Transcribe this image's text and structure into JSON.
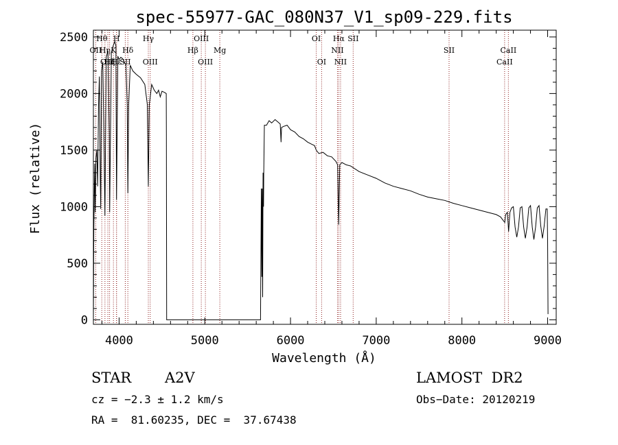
{
  "chart_data": {
    "type": "line",
    "title": "spec-55977-GAC_080N37_V1_sp09-229.fits",
    "xlabel": "Wavelength (Å)",
    "ylabel": "Flux (relative)",
    "xlim": [
      3700,
      9100
    ],
    "ylim": [
      -40,
      2560
    ],
    "xticks": [
      4000,
      5000,
      6000,
      7000,
      8000,
      9000
    ],
    "yticks": [
      0,
      500,
      1000,
      1500,
      2000,
      2500
    ],
    "grid": false,
    "line_color": "#000000",
    "marker_color": "#8b1a1a",
    "series": [
      {
        "points": [
          [
            3700,
            0
          ],
          [
            3705,
            780
          ],
          [
            3715,
            1380
          ],
          [
            3722,
            950
          ],
          [
            3730,
            1430
          ],
          [
            3740,
            1500
          ],
          [
            3750,
            1180
          ],
          [
            3760,
            1900
          ],
          [
            3770,
            2150
          ],
          [
            3780,
            1250
          ],
          [
            3786,
            980
          ],
          [
            3795,
            2200
          ],
          [
            3810,
            2280
          ],
          [
            3825,
            1500
          ],
          [
            3835,
            920
          ],
          [
            3850,
            2320
          ],
          [
            3870,
            2380
          ],
          [
            3885,
            1650
          ],
          [
            3890,
            950
          ],
          [
            3910,
            2360
          ],
          [
            3930,
            2420
          ],
          [
            3950,
            2460
          ],
          [
            3963,
            2420
          ],
          [
            3970,
            1060
          ],
          [
            3985,
            2330
          ],
          [
            4000,
            2300
          ],
          [
            4020,
            2320
          ],
          [
            4040,
            2310
          ],
          [
            4060,
            2280
          ],
          [
            4080,
            2250
          ],
          [
            4095,
            1900
          ],
          [
            4102,
            1120
          ],
          [
            4112,
            1900
          ],
          [
            4130,
            2250
          ],
          [
            4160,
            2200
          ],
          [
            4200,
            2170
          ],
          [
            4250,
            2140
          ],
          [
            4300,
            2080
          ],
          [
            4330,
            1900
          ],
          [
            4341,
            1180
          ],
          [
            4352,
            1900
          ],
          [
            4380,
            2080
          ],
          [
            4410,
            2030
          ],
          [
            4440,
            2000
          ],
          [
            4460,
            2030
          ],
          [
            4480,
            1970
          ],
          [
            4500,
            2020
          ],
          [
            4530,
            2010
          ],
          [
            4550,
            2000
          ],
          [
            4552,
            1650
          ],
          [
            4555,
            0
          ],
          [
            5650,
            0
          ],
          [
            5660,
            1160
          ],
          [
            5665,
            380
          ],
          [
            5670,
            1160
          ],
          [
            5675,
            200
          ],
          [
            5680,
            1300
          ],
          [
            5685,
            1000
          ],
          [
            5688,
            1290
          ],
          [
            5695,
            1720
          ],
          [
            5720,
            1720
          ],
          [
            5750,
            1760
          ],
          [
            5780,
            1740
          ],
          [
            5820,
            1770
          ],
          [
            5850,
            1750
          ],
          [
            5880,
            1730
          ],
          [
            5890,
            1570
          ],
          [
            5895,
            1700
          ],
          [
            5920,
            1710
          ],
          [
            5960,
            1720
          ],
          [
            6000,
            1680
          ],
          [
            6050,
            1660
          ],
          [
            6100,
            1620
          ],
          [
            6150,
            1600
          ],
          [
            6200,
            1570
          ],
          [
            6250,
            1550
          ],
          [
            6280,
            1540
          ],
          [
            6300,
            1500
          ],
          [
            6330,
            1470
          ],
          [
            6380,
            1480
          ],
          [
            6430,
            1450
          ],
          [
            6480,
            1440
          ],
          [
            6530,
            1400
          ],
          [
            6550,
            1370
          ],
          [
            6562,
            840
          ],
          [
            6575,
            1370
          ],
          [
            6600,
            1390
          ],
          [
            6650,
            1370
          ],
          [
            6700,
            1360
          ],
          [
            6800,
            1310
          ],
          [
            6900,
            1280
          ],
          [
            7000,
            1250
          ],
          [
            7100,
            1210
          ],
          [
            7200,
            1180
          ],
          [
            7300,
            1160
          ],
          [
            7400,
            1140
          ],
          [
            7500,
            1110
          ],
          [
            7600,
            1085
          ],
          [
            7700,
            1070
          ],
          [
            7800,
            1055
          ],
          [
            7900,
            1030
          ],
          [
            8000,
            1010
          ],
          [
            8100,
            990
          ],
          [
            8200,
            970
          ],
          [
            8300,
            950
          ],
          [
            8400,
            930
          ],
          [
            8450,
            910
          ],
          [
            8480,
            880
          ],
          [
            8500,
            860
          ],
          [
            8510,
            930
          ],
          [
            8530,
            950
          ],
          [
            8545,
            780
          ],
          [
            8560,
            950
          ],
          [
            8580,
            990
          ],
          [
            8600,
            1000
          ],
          [
            8620,
            820
          ],
          [
            8640,
            730
          ],
          [
            8660,
            820
          ],
          [
            8680,
            990
          ],
          [
            8700,
            1000
          ],
          [
            8720,
            820
          ],
          [
            8740,
            720
          ],
          [
            8760,
            820
          ],
          [
            8780,
            990
          ],
          [
            8800,
            1010
          ],
          [
            8820,
            820
          ],
          [
            8840,
            710
          ],
          [
            8860,
            820
          ],
          [
            8880,
            990
          ],
          [
            8900,
            1010
          ],
          [
            8920,
            830
          ],
          [
            8940,
            720
          ],
          [
            8960,
            830
          ],
          [
            8980,
            980
          ],
          [
            8995,
            980
          ],
          [
            9000,
            700
          ],
          [
            9005,
            50
          ]
        ]
      }
    ],
    "line_markers": [
      {
        "label": "Hθ",
        "wave": 3798,
        "row": 0
      },
      {
        "label": "H",
        "wave": 3970,
        "row": 0
      },
      {
        "label": "Hγ",
        "wave": 4341,
        "row": 0
      },
      {
        "label": "OIII",
        "wave": 4959,
        "row": 0
      },
      {
        "label": "OI",
        "wave": 6300,
        "row": 0
      },
      {
        "label": "Hα",
        "wave": 6563,
        "row": 0
      },
      {
        "label": "SII",
        "wave": 6731,
        "row": 0
      },
      {
        "label": "OII",
        "wave": 3727,
        "row": 1
      },
      {
        "label": "Hη",
        "wave": 3835,
        "row": 1
      },
      {
        "label": "K",
        "wave": 3934,
        "row": 1
      },
      {
        "label": "Hδ",
        "wave": 4102,
        "row": 1
      },
      {
        "label": "Hβ",
        "wave": 4861,
        "row": 1
      },
      {
        "label": "Mg",
        "wave": 5175,
        "row": 1
      },
      {
        "label": "NII",
        "wave": 6548,
        "row": 1
      },
      {
        "label": "SII",
        "wave": 7850,
        "row": 1
      },
      {
        "label": "CaII",
        "wave": 8542,
        "row": 1
      },
      {
        "label": "OIII",
        "wave": 3869,
        "row": 2
      },
      {
        "label": "Hζ",
        "wave": 3889,
        "row": 2
      },
      {
        "label": "Hε",
        "wave": 3970,
        "row": 2
      },
      {
        "label": "SII",
        "wave": 4072,
        "row": 2
      },
      {
        "label": "OIII",
        "wave": 4363,
        "row": 2
      },
      {
        "label": "OIII",
        "wave": 5007,
        "row": 2
      },
      {
        "label": "OI",
        "wave": 6363,
        "row": 2
      },
      {
        "label": "NII",
        "wave": 6584,
        "row": 2
      },
      {
        "label": "CaII",
        "wave": 8498,
        "row": 2
      }
    ]
  },
  "info": {
    "object_class": "STAR",
    "subclass": "A2V",
    "survey": "LAMOST  DR2",
    "cz": "cz = −2.3 ± 1.2 km/s",
    "obs_date": "Obs−Date: 20120219",
    "coords": "RA =  81.60235, DEC =  37.67438"
  }
}
